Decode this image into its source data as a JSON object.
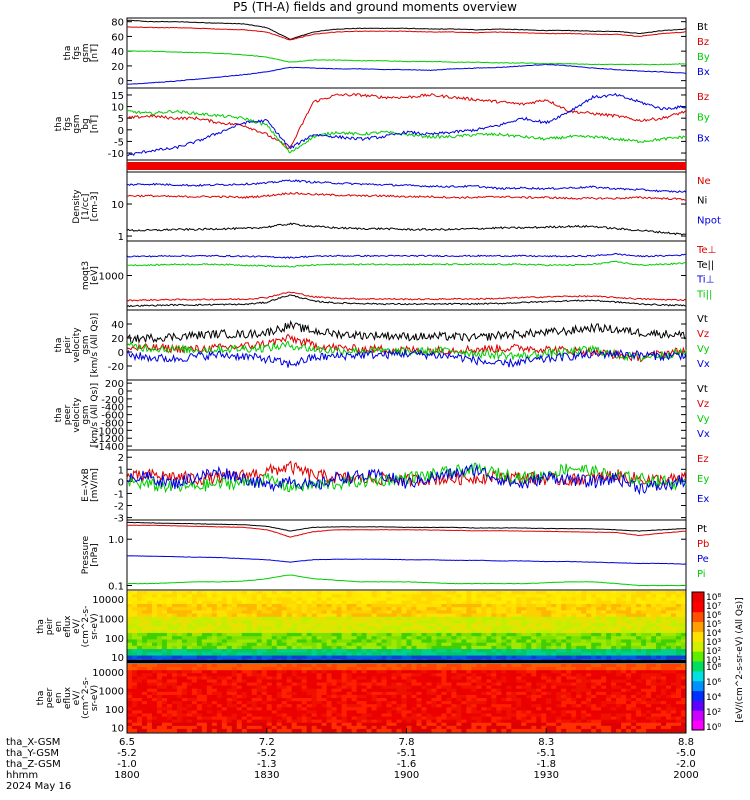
{
  "title": "P5 (TH-A) fields and ground moments overview",
  "date_label": "2024 May 16",
  "colors": {
    "black": "#000000",
    "red": "#dd0000",
    "green": "#00cc00",
    "blue": "#0000dd"
  },
  "chart_data": [
    {
      "type": "line",
      "ylabel_lines": [
        "tha",
        "fgs",
        "gsm",
        "[nT]"
      ],
      "ylim": [
        -10,
        85
      ],
      "yticks": [
        "80",
        "60",
        "40",
        "20",
        "0"
      ],
      "ytick_values": [
        80,
        60,
        40,
        20,
        0
      ],
      "series": [
        {
          "name": "Bt",
          "color": "black",
          "values": [
            82,
            80,
            80,
            79,
            78,
            77,
            72,
            56,
            66,
            70,
            71,
            71,
            71,
            70,
            70,
            69,
            70,
            69,
            68,
            68,
            67,
            67,
            64,
            68,
            70
          ]
        },
        {
          "name": "Bz",
          "color": "red",
          "values": [
            73,
            72,
            72,
            71,
            70,
            69,
            66,
            55,
            63,
            66,
            67,
            67,
            67,
            66,
            66,
            65,
            66,
            65,
            64,
            64,
            63,
            63,
            60,
            64,
            66
          ]
        },
        {
          "name": "By",
          "color": "green",
          "values": [
            40,
            40,
            39,
            38,
            37,
            35,
            32,
            25,
            28,
            28,
            27,
            27,
            26,
            26,
            25,
            25,
            24,
            24,
            23,
            23,
            22,
            22,
            22,
            22,
            23
          ]
        },
        {
          "name": "Bx",
          "color": "blue",
          "values": [
            -5,
            -3,
            -1,
            2,
            5,
            8,
            12,
            18,
            17,
            16,
            16,
            15,
            15,
            14,
            16,
            17,
            18,
            20,
            22,
            20,
            17,
            15,
            13,
            12,
            10
          ]
        }
      ]
    },
    {
      "type": "line",
      "ylabel_lines": [
        "tha",
        "fgs",
        "gsm",
        "bg",
        "[nT]"
      ],
      "ylim": [
        -13,
        18
      ],
      "yticks": [
        "15",
        "10",
        "5",
        "0",
        "-5",
        "-10"
      ],
      "ytick_values": [
        15,
        10,
        5,
        0,
        -5,
        -10
      ],
      "series": [
        {
          "name": "Bz",
          "color": "red",
          "values": [
            5,
            6,
            5,
            5,
            3,
            2,
            -2,
            -8,
            12,
            15,
            15,
            14,
            14,
            15,
            14,
            13,
            12,
            11,
            13,
            8,
            7,
            6,
            4,
            5,
            8
          ]
        },
        {
          "name": "By",
          "color": "green",
          "values": [
            8,
            7,
            8,
            7,
            6,
            5,
            2,
            -10,
            -3,
            -1,
            -2,
            -1,
            -2,
            -3,
            -3,
            -2,
            -2,
            -3,
            -4,
            -3,
            -3,
            -4,
            -5,
            -4,
            -3
          ]
        },
        {
          "name": "Bx",
          "color": "blue",
          "values": [
            -11,
            -9,
            -8,
            -5,
            -1,
            3,
            4,
            -8,
            -2,
            -3,
            -4,
            -3,
            -1,
            -2,
            -1,
            0,
            2,
            5,
            3,
            8,
            14,
            15,
            12,
            9,
            10
          ]
        }
      ]
    },
    {
      "type": "line",
      "ylabel_lines": [
        "Density",
        "[1/cc]",
        "[cm-3]"
      ],
      "ylim": [
        0.7,
        100
      ],
      "log": true,
      "yticks": [
        "10",
        "1"
      ],
      "ytick_values": [
        10,
        1
      ],
      "series": [
        {
          "name": "Ne",
          "color": "red",
          "values": [
            18,
            18,
            17,
            17,
            17,
            16,
            18,
            22,
            20,
            19,
            18,
            18,
            17,
            17,
            16,
            16,
            17,
            16,
            16,
            15,
            15,
            15,
            16,
            15,
            14
          ]
        },
        {
          "name": "Ni",
          "color": "black",
          "values": [
            1.5,
            1.5,
            1.6,
            1.6,
            1.7,
            1.7,
            1.9,
            2.4,
            2,
            1.8,
            1.7,
            1.7,
            1.6,
            1.6,
            1.6,
            1.7,
            1.8,
            1.8,
            1.9,
            2,
            2,
            1.7,
            1.5,
            1.3,
            1.1
          ]
        },
        {
          "name": "Npot",
          "color": "blue",
          "values": [
            40,
            42,
            40,
            38,
            40,
            42,
            45,
            55,
            48,
            45,
            42,
            40,
            38,
            36,
            35,
            36,
            30,
            32,
            30,
            32,
            34,
            30,
            28,
            25,
            24
          ]
        }
      ]
    },
    {
      "type": "line",
      "ylabel_lines": [
        "moqt3",
        "[eV]"
      ],
      "ylim": [
        100,
        10000
      ],
      "log": true,
      "yticks": [
        "1000"
      ],
      "ytick_values": [
        1000
      ],
      "series": [
        {
          "name": "Te⊥",
          "color": "red",
          "values": [
            190,
            195,
            200,
            200,
            205,
            205,
            230,
            330,
            240,
            220,
            210,
            210,
            205,
            205,
            210,
            210,
            215,
            230,
            240,
            250,
            250,
            230,
            210,
            200,
            195
          ]
        },
        {
          "name": "Te||",
          "color": "black",
          "values": [
            130,
            135,
            140,
            140,
            145,
            145,
            165,
            270,
            180,
            160,
            155,
            150,
            148,
            148,
            150,
            150,
            155,
            165,
            175,
            185,
            190,
            170,
            150,
            140,
            135
          ]
        },
        {
          "name": "Ti⊥",
          "color": "blue",
          "values": [
            3600,
            3600,
            3700,
            3700,
            3700,
            3600,
            3500,
            3300,
            3600,
            3700,
            3700,
            3700,
            3700,
            3700,
            3700,
            3700,
            3700,
            3700,
            3600,
            3600,
            3700,
            4200,
            3600,
            3700,
            4000
          ]
        },
        {
          "name": "Ti||",
          "color": "green",
          "values": [
            2000,
            2000,
            2100,
            2100,
            2100,
            2000,
            1900,
            1800,
            2000,
            2100,
            2100,
            2100,
            2100,
            2100,
            2100,
            2100,
            2100,
            2100,
            2000,
            2000,
            2100,
            2500,
            2000,
            2100,
            2300
          ]
        }
      ]
    },
    {
      "type": "line",
      "ylabel_lines": [
        "tha",
        "peir",
        "velocity",
        "gsm",
        "[km/s (All Qs)]"
      ],
      "ylim": [
        -40,
        60
      ],
      "yticks": [
        "40",
        "20",
        "0",
        "-20"
      ],
      "ytick_values": [
        40,
        20,
        0,
        -20
      ],
      "series": [
        {
          "name": "Vt",
          "color": "black",
          "values": [
            18,
            20,
            22,
            24,
            26,
            25,
            28,
            38,
            30,
            26,
            24,
            24,
            22,
            22,
            22,
            20,
            24,
            26,
            28,
            30,
            35,
            32,
            28,
            26,
            24
          ]
        },
        {
          "name": "Vz",
          "color": "red",
          "values": [
            5,
            6,
            5,
            4,
            6,
            8,
            12,
            20,
            10,
            6,
            4,
            4,
            3,
            2,
            3,
            4,
            5,
            6,
            4,
            2,
            0,
            -4,
            -8,
            -2,
            2
          ]
        },
        {
          "name": "Vy",
          "color": "green",
          "values": [
            8,
            6,
            4,
            3,
            4,
            5,
            6,
            10,
            4,
            2,
            2,
            1,
            0,
            1,
            2,
            -2,
            -4,
            -6,
            -2,
            0,
            4,
            -4,
            -8,
            -4,
            0
          ]
        },
        {
          "name": "Vx",
          "color": "blue",
          "values": [
            -4,
            -8,
            -10,
            -6,
            -4,
            -6,
            -10,
            -18,
            -8,
            -6,
            -4,
            -4,
            -2,
            -4,
            -6,
            -12,
            -18,
            -14,
            -10,
            -6,
            -4,
            -2,
            -4,
            -6,
            -4
          ]
        }
      ]
    },
    {
      "type": "line",
      "ylabel_lines": [
        "tha",
        "peer",
        "velocity",
        "gsm",
        "[km/s (All Qs)]"
      ],
      "ylim": [
        -1500,
        280
      ],
      "yticks": [
        "200",
        "0",
        "-200",
        "-400",
        "-600",
        "-800",
        "-1000",
        "-1200",
        "-1400"
      ],
      "ytick_values": [
        200,
        0,
        -200,
        -400,
        -600,
        -800,
        -1000,
        -1200,
        -1400
      ],
      "series": [
        {
          "name": "Vt",
          "color": "black",
          "values": []
        },
        {
          "name": "Vz",
          "color": "red",
          "values": []
        },
        {
          "name": "Vy",
          "color": "green",
          "values": []
        },
        {
          "name": "Vx",
          "color": "blue",
          "values": []
        }
      ]
    },
    {
      "type": "line",
      "ylabel_lines": [
        "E=-VxB",
        "[mV/m]"
      ],
      "ylim": [
        -3.2,
        2.6
      ],
      "yticks": [
        "2",
        "1",
        "0",
        "-1",
        "-2",
        "-3"
      ],
      "ytick_values": [
        2,
        1,
        0,
        -1,
        -2,
        -3
      ],
      "series": [
        {
          "name": "Ez",
          "color": "red",
          "values": [
            0.3,
            0.5,
            0.4,
            0.2,
            0.3,
            0.5,
            0.8,
            1.2,
            0.5,
            0.3,
            0.2,
            0.2,
            0.1,
            0.2,
            0.2,
            0.3,
            0.4,
            0.3,
            0.2,
            0.1,
            0.3,
            0.5,
            0.2,
            0.1,
            0.2
          ]
        },
        {
          "name": "Ey",
          "color": "green",
          "values": [
            0,
            -0.3,
            -0.5,
            -0.4,
            -0.2,
            -0.1,
            0.2,
            -0.5,
            -0.3,
            -0.2,
            0,
            0.1,
            0.3,
            0.5,
            0.8,
            1,
            0.6,
            0.3,
            0.5,
            1.2,
            0.8,
            0.4,
            0.2,
            0,
            -0.3
          ]
        },
        {
          "name": "Ex",
          "color": "blue",
          "values": [
            0.5,
            0.3,
            -0.2,
            0.4,
            0.8,
            0.3,
            -0.4,
            0.2,
            -0.5,
            0.3,
            0.4,
            0.5,
            -0.2,
            0.3,
            0.6,
            1,
            0.2,
            -0.3,
            0.4,
            0.2,
            -0.1,
            0.3,
            -0.5,
            -0.4,
            0.1
          ]
        }
      ]
    },
    {
      "type": "line",
      "ylabel_lines": [
        "Pressure",
        "[nPa]"
      ],
      "ylim": [
        0.08,
        2.6
      ],
      "log": true,
      "yticks": [
        "1.0",
        "0.1"
      ],
      "ytick_values": [
        1,
        0.1
      ],
      "series": [
        {
          "name": "Pt",
          "color": "black",
          "values": [
            2.3,
            2.25,
            2.2,
            2.15,
            2.1,
            2.05,
            1.9,
            1.5,
            1.8,
            1.85,
            1.85,
            1.85,
            1.8,
            1.8,
            1.8,
            1.75,
            1.75,
            1.75,
            1.7,
            1.7,
            1.68,
            1.6,
            1.5,
            1.6,
            1.7
          ]
        },
        {
          "name": "Pb",
          "color": "red",
          "values": [
            2.0,
            2.0,
            1.95,
            1.9,
            1.85,
            1.8,
            1.6,
            1.1,
            1.45,
            1.6,
            1.6,
            1.6,
            1.6,
            1.58,
            1.55,
            1.52,
            1.52,
            1.5,
            1.48,
            1.45,
            1.42,
            1.4,
            1.2,
            1.35,
            1.5
          ]
        },
        {
          "name": "Pe",
          "color": "blue",
          "values": [
            0.44,
            0.43,
            0.42,
            0.41,
            0.4,
            0.38,
            0.36,
            0.32,
            0.36,
            0.37,
            0.37,
            0.37,
            0.36,
            0.36,
            0.35,
            0.35,
            0.34,
            0.34,
            0.33,
            0.33,
            0.32,
            0.31,
            0.3,
            0.3,
            0.29
          ]
        },
        {
          "name": "Pi",
          "color": "green",
          "values": [
            0.11,
            0.11,
            0.115,
            0.12,
            0.12,
            0.125,
            0.14,
            0.17,
            0.14,
            0.13,
            0.12,
            0.12,
            0.12,
            0.115,
            0.11,
            0.11,
            0.11,
            0.11,
            0.115,
            0.12,
            0.12,
            0.11,
            0.1,
            0.1,
            0.1
          ]
        }
      ]
    },
    {
      "type": "heatmap",
      "ylabel_lines": [
        "tha",
        "peir",
        "en",
        "eflux",
        "eV/",
        "(cm^2-s-",
        "sr-eV)"
      ],
      "ylim": [
        5,
        30000
      ],
      "log": true,
      "yticks": [
        "10000",
        "1000",
        "100",
        "10"
      ],
      "ytick_values": [
        10000,
        1000,
        100,
        10
      ]
    },
    {
      "type": "heatmap",
      "ylabel_lines": [
        "tha",
        "peer",
        "en",
        "eflux",
        "eV/",
        "(cm^2-s-",
        "sr-eV)"
      ],
      "ylim": [
        5,
        30000
      ],
      "log": true,
      "yticks": [
        "10000",
        "1000",
        "100",
        "10"
      ],
      "ytick_values": [
        10000,
        1000,
        100,
        10
      ]
    }
  ],
  "colorbar": {
    "label": "[eV/(cm^2-s-sr-eV) (All Qs)]",
    "labels_top": [
      "10⁸",
      "10⁷",
      "10⁶",
      "10⁵",
      "10⁴",
      "10³",
      "10²",
      "10¹"
    ],
    "labels_bottom": [
      "10⁸",
      "10⁶",
      "10⁴",
      "10²",
      "10⁰"
    ]
  },
  "xaxis": {
    "row_labels": [
      "tha_X-GSM",
      "tha_Y-GSM",
      "tha_Z-GSM",
      "hhmm"
    ],
    "ticks": [
      {
        "x": "6.5",
        "y": "-5.2",
        "z": "-1.0",
        "hhmm": "1800"
      },
      {
        "x": "7.2",
        "y": "-5.2",
        "z": "-1.3",
        "hhmm": "1830"
      },
      {
        "x": "7.8",
        "y": "-5.1",
        "z": "-1.6",
        "hhmm": "1900"
      },
      {
        "x": "8.3",
        "y": "-5.1",
        "z": "-1.8",
        "hhmm": "1930"
      },
      {
        "x": "8.8",
        "y": "-5.0",
        "z": "-2.0",
        "hhmm": "2000"
      }
    ]
  }
}
